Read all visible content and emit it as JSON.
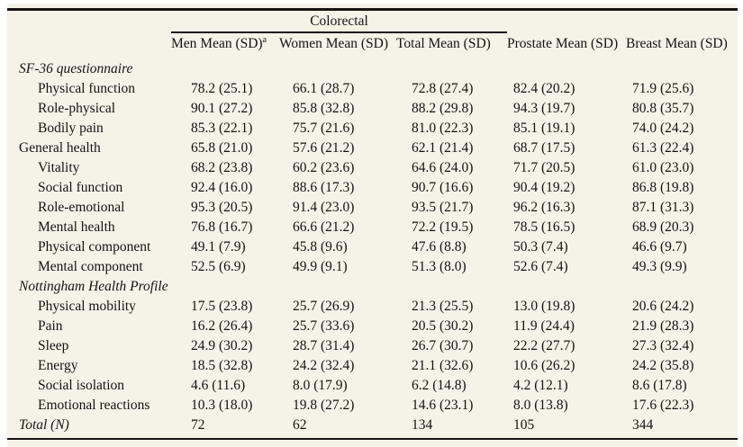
{
  "table": {
    "spanner_label": "Colorectal",
    "columns": [
      {
        "label": "Men Mean (SD)",
        "sup": "a"
      },
      {
        "label": "Women Mean (SD)",
        "sup": ""
      },
      {
        "label": "Total Mean (SD)",
        "sup": ""
      },
      {
        "label": "Prostate Mean (SD)",
        "sup": ""
      },
      {
        "label": "Breast Mean (SD)",
        "sup": ""
      }
    ],
    "rows": [
      {
        "label": "SF-36 questionnaire",
        "style": "section",
        "values": [
          "",
          "",
          "",
          "",
          ""
        ]
      },
      {
        "label": "Physical function",
        "style": "indent",
        "values": [
          "78.2 (25.1)",
          "66.1 (28.7)",
          "72.8 (27.4)",
          "82.4 (20.2)",
          "71.9 (25.6)"
        ]
      },
      {
        "label": "Role-physical",
        "style": "indent",
        "values": [
          "90.1 (27.2)",
          "85.8 (32.8)",
          "88.2 (29.8)",
          "94.3 (19.7)",
          "80.8 (35.7)"
        ]
      },
      {
        "label": "Bodily pain",
        "style": "indent",
        "values": [
          "85.3 (22.1)",
          "75.7 (21.6)",
          "81.0 (22.3)",
          "85.1 (19.1)",
          "74.0 (24.2)"
        ]
      },
      {
        "label": "General health",
        "style": "flush",
        "values": [
          "65.8 (21.0)",
          "57.6 (21.2)",
          "62.1 (21.4)",
          "68.7 (17.5)",
          "61.3 (22.4)"
        ]
      },
      {
        "label": "Vitality",
        "style": "indent",
        "values": [
          "68.2 (23.8)",
          "60.2 (23.6)",
          "64.6 (24.0)",
          "71.7 (20.5)",
          "61.0 (23.0)"
        ]
      },
      {
        "label": "Social function",
        "style": "indent",
        "values": [
          "92.4 (16.0)",
          "88.6 (17.3)",
          "90.7 (16.6)",
          "90.4 (19.2)",
          "86.8 (19.8)"
        ]
      },
      {
        "label": "Role-emotional",
        "style": "indent",
        "values": [
          "95.3 (20.5)",
          "91.4 (23.0)",
          "93.5 (21.7)",
          "96.2 (16.3)",
          "87.1 (31.3)"
        ]
      },
      {
        "label": "Mental health",
        "style": "indent",
        "values": [
          "76.8 (16.7)",
          "66.6 (21.2)",
          "72.2 (19.5)",
          "78.5 (16.5)",
          "68.9 (20.3)"
        ]
      },
      {
        "label": "Physical component",
        "style": "indent",
        "values": [
          "49.1 (7.9)",
          "45.8 (9.6)",
          "47.6 (8.8)",
          "50.3 (7.4)",
          "46.6 (9.7)"
        ]
      },
      {
        "label": "Mental component",
        "style": "indent",
        "values": [
          "52.5 (6.9)",
          "49.9 (9.1)",
          "51.3 (8.0)",
          "52.6 (7.4)",
          "49.3 (9.9)"
        ]
      },
      {
        "label": "Nottingham Health Profile",
        "style": "section",
        "values": [
          "",
          "",
          "",
          "",
          ""
        ]
      },
      {
        "label": "Physical mobility",
        "style": "indent",
        "values": [
          "17.5 (23.8)",
          "25.7 (26.9)",
          "21.3 (25.5)",
          "13.0 (19.8)",
          "20.6 (24.2)"
        ]
      },
      {
        "label": "Pain",
        "style": "indent",
        "values": [
          "16.2 (26.4)",
          "25.7 (33.6)",
          "20.5 (30.2)",
          "11.9 (24.4)",
          "21.9 (28.3)"
        ]
      },
      {
        "label": "Sleep",
        "style": "indent",
        "values": [
          "24.9 (30.2)",
          "28.7 (31.4)",
          "26.7 (30.7)",
          "22.2 (27.7)",
          "27.3 (32.4)"
        ]
      },
      {
        "label": "Energy",
        "style": "indent",
        "values": [
          "18.5 (32.8)",
          "24.2 (32.4)",
          "21.1 (32.6)",
          "10.6 (26.2)",
          "24.2 (35.8)"
        ]
      },
      {
        "label": "Social isolation",
        "style": "indent",
        "values": [
          "4.6 (11.6)",
          "8.0 (17.9)",
          "6.2 (14.8)",
          "4.2 (12.1)",
          "8.6 (17.8)"
        ]
      },
      {
        "label": "Emotional reactions",
        "style": "indent",
        "values": [
          "10.3 (18.0)",
          "19.8 (27.2)",
          "14.6 (23.1)",
          "8.0 (13.8)",
          "17.6 (22.3)"
        ]
      },
      {
        "label": "Total (N)",
        "style": "total",
        "values": [
          "72",
          "62",
          "134",
          "105",
          "344"
        ]
      }
    ]
  }
}
